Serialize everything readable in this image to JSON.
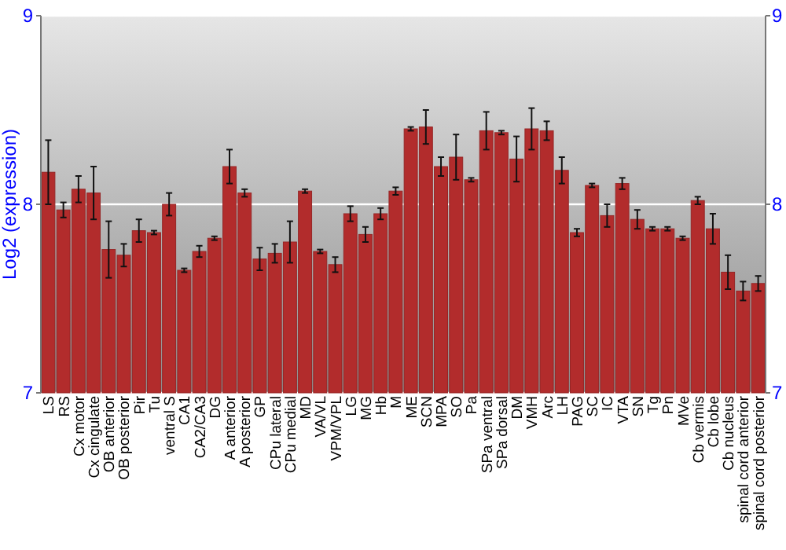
{
  "chart_data": {
    "type": "bar",
    "ylabel": "Log2 (expression)",
    "categories": [
      "LS",
      "RS",
      "Cx motor",
      "Cx cingulate",
      "OB anterior",
      "OB posterior",
      "Pir",
      "Tu",
      "ventral S",
      "CA1",
      "CA2/CA3",
      "DG",
      "A anterior",
      "A posterior",
      "GP",
      "CPu lateral",
      "CPu medial",
      "MD",
      "VA/VL",
      "VPM/VPL",
      "LG",
      "MG",
      "Hb",
      "M",
      "ME",
      "SCN",
      "MPA",
      "SO",
      "Pa",
      "SPa ventral",
      "SPa dorsal",
      "DM",
      "VMH",
      "Arc",
      "LH",
      "PAG",
      "SC",
      "IC",
      "VTA",
      "SN",
      "Tg",
      "Pn",
      "MVe",
      "Cb vermis",
      "Cb lobe",
      "Cb nucleus",
      "spinal cord anterior",
      "spinal cord posterior"
    ],
    "values": [
      8.17,
      7.97,
      8.08,
      8.06,
      7.76,
      7.73,
      7.86,
      7.85,
      8.0,
      7.65,
      7.75,
      7.82,
      8.2,
      8.06,
      7.71,
      7.74,
      7.8,
      8.07,
      7.75,
      7.68,
      7.95,
      7.84,
      7.95,
      8.07,
      8.4,
      8.41,
      8.2,
      8.25,
      8.13,
      8.39,
      8.38,
      8.24,
      8.4,
      8.39,
      8.18,
      7.85,
      8.1,
      7.94,
      8.11,
      7.92,
      7.87,
      7.87,
      7.82,
      8.02,
      7.87,
      7.64,
      7.54,
      7.58
    ],
    "errors": [
      0.17,
      0.04,
      0.07,
      0.14,
      0.15,
      0.06,
      0.06,
      0.01,
      0.06,
      0.01,
      0.03,
      0.01,
      0.09,
      0.02,
      0.06,
      0.05,
      0.11,
      0.01,
      0.01,
      0.04,
      0.04,
      0.04,
      0.03,
      0.02,
      0.01,
      0.09,
      0.05,
      0.12,
      0.01,
      0.1,
      0.01,
      0.12,
      0.11,
      0.05,
      0.07,
      0.02,
      0.01,
      0.06,
      0.03,
      0.05,
      0.01,
      0.01,
      0.01,
      0.02,
      0.08,
      0.09,
      0.05,
      0.04
    ],
    "color": "#b22c2c",
    "ylim": [
      7,
      9
    ],
    "yticks": [
      7,
      8,
      9
    ],
    "y2lim": [
      7,
      9
    ],
    "y2ticks": [
      7,
      8,
      9
    ],
    "grid": "y"
  }
}
